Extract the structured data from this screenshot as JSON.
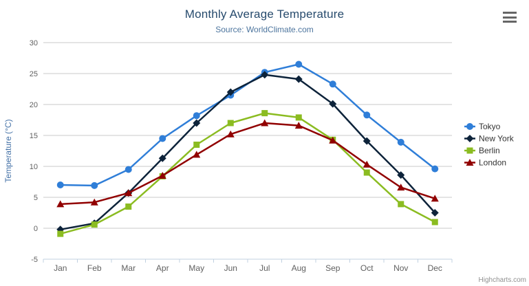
{
  "header": {
    "title": "Monthly Average Temperature",
    "subtitle": "Source: WorldClimate.com"
  },
  "export_menu": {
    "icon": "hamburger-icon"
  },
  "credit_label": "Highcharts.com",
  "colors": {
    "title": "#274b6d",
    "subtitle": "#4d759e",
    "axis_title": "#4572a7",
    "axis_labels": "#606060",
    "grid_line": "#c8c8c8",
    "axis_line": "#c0d0e0",
    "legend_text": "#333333",
    "credit": "#909090",
    "menu_icon": "#666666",
    "background": "#ffffff"
  },
  "chart_data": {
    "type": "line",
    "title": "Monthly Average Temperature",
    "subtitle": "Source: WorldClimate.com",
    "xlabel": "",
    "ylabel": "Temperature (°C)",
    "categories": [
      "Jan",
      "Feb",
      "Mar",
      "Apr",
      "May",
      "Jun",
      "Jul",
      "Aug",
      "Sep",
      "Oct",
      "Nov",
      "Dec"
    ],
    "ylim": [
      -5,
      30
    ],
    "yticks": [
      -5,
      0,
      5,
      10,
      15,
      20,
      25,
      30
    ],
    "grid": true,
    "legend_position": "right",
    "series": [
      {
        "name": "Tokyo",
        "color": "#2f7ed8",
        "marker": "circle",
        "values": [
          7.0,
          6.9,
          9.5,
          14.5,
          18.2,
          21.5,
          25.2,
          26.5,
          23.3,
          18.3,
          13.9,
          9.6
        ]
      },
      {
        "name": "New York",
        "color": "#0d233a",
        "marker": "diamond",
        "values": [
          -0.2,
          0.8,
          5.7,
          11.3,
          17.0,
          22.0,
          24.8,
          24.1,
          20.1,
          14.1,
          8.6,
          2.5
        ]
      },
      {
        "name": "Berlin",
        "color": "#8bbc21",
        "marker": "square",
        "values": [
          -0.9,
          0.6,
          3.5,
          8.4,
          13.5,
          17.0,
          18.6,
          17.9,
          14.3,
          9.0,
          3.9,
          1.0
        ]
      },
      {
        "name": "London",
        "color": "#910000",
        "marker": "triangle",
        "values": [
          3.9,
          4.2,
          5.7,
          8.5,
          11.9,
          15.2,
          17.0,
          16.6,
          14.2,
          10.3,
          6.6,
          4.8
        ]
      }
    ]
  }
}
